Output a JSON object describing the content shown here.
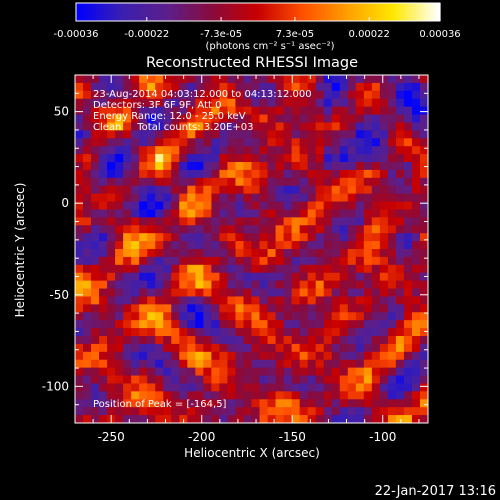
{
  "chart_data": {
    "type": "heatmap",
    "title": "Reconstructed RHESSI Image",
    "xlabel": "Heliocentric X (arcsec)",
    "ylabel": "Heliocentric Y (arcsec)",
    "xlim": [
      -270,
      -75
    ],
    "ylim": [
      -120,
      70
    ],
    "x_ticks": [
      -250,
      -200,
      -150,
      -100
    ],
    "y_ticks": [
      50,
      0,
      -50,
      -100
    ],
    "colorbar": {
      "ticks": [
        "-0.00036",
        "-0.00022",
        "-7.3e-05",
        "7.3e-05",
        "0.00022",
        "0.00036"
      ],
      "unit": "(photons cm⁻² s⁻¹ asec⁻²)",
      "range": [
        -0.00036,
        0.00036
      ]
    },
    "annotations": [
      "23-Aug-2014 04:03:12.000 to 04:13:12.000",
      "Detectors: 3F 6F 9F, Att 0",
      "Energy Range: 12.0 - 25.0 keV",
      "Clean     Total counts: 3.20E+03"
    ],
    "peak_label": "Position of Peak = [-164,5]",
    "peak": [
      -164,
      5
    ],
    "colors": {
      "cmap_stops": [
        "#0000ff",
        "#3b1fb0",
        "#5c1f8a",
        "#8a0a3a",
        "#c80000",
        "#ff5000",
        "#ffa000",
        "#ffe800",
        "#ffffff"
      ]
    }
  },
  "footer": {
    "date": "22-Jan-2017 13:16"
  }
}
